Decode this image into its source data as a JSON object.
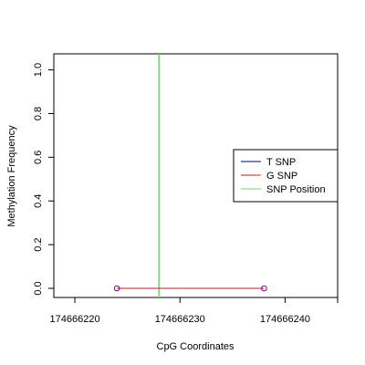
{
  "chart_data": {
    "type": "line",
    "xlabel": "CpG Coordinates",
    "ylabel": "Methylation Frequency",
    "xlim": [
      174666218,
      174666245
    ],
    "ylim": [
      0,
      1.04
    ],
    "x_ticks": [
      174666220,
      174666230,
      174666240
    ],
    "y_ticks": [
      0.0,
      0.2,
      0.4,
      0.6,
      0.8,
      1.0
    ],
    "y_tick_labels": [
      "0.0",
      "0.2",
      "0.4",
      "0.6",
      "0.8",
      "1.0"
    ],
    "series": [
      {
        "name": "T SNP",
        "color": "#000080",
        "x": [
          174666224,
          174666238
        ],
        "y": [
          0.0,
          0.0
        ],
        "markers": false
      },
      {
        "name": "G SNP",
        "color": "#b22222",
        "x": [
          174666224,
          174666238
        ],
        "y": [
          0.0,
          0.0
        ],
        "markers": true,
        "marker_color": "#8b008b"
      }
    ],
    "snp_position": {
      "name": "SNP Position",
      "x": 174666228,
      "color": "#66dd66"
    },
    "legend": {
      "placement": "right",
      "entries": [
        {
          "label": "T SNP",
          "color": "#000080"
        },
        {
          "label": "G SNP",
          "color": "#b22222"
        },
        {
          "label": "SNP Position",
          "color": "#66dd66"
        }
      ]
    }
  }
}
